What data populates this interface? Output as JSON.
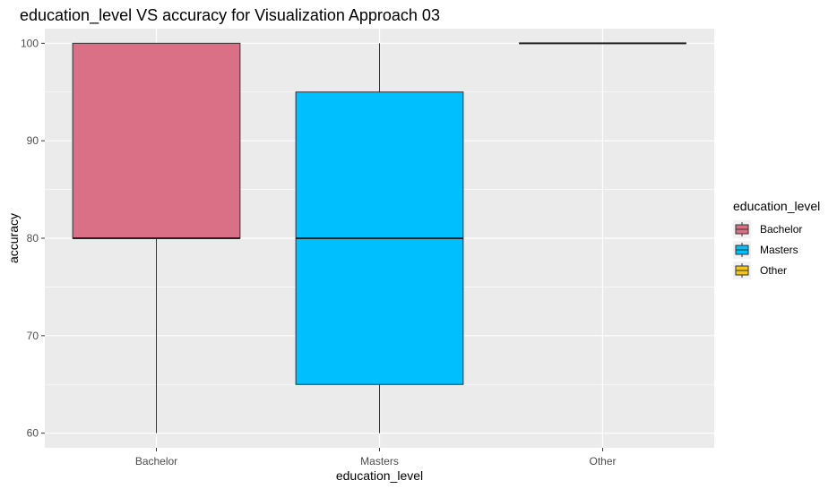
{
  "chart_data": {
    "type": "boxplot",
    "title": "education_level VS accuracy for Visualization Approach 03",
    "xlabel": "education_level",
    "ylabel": "accuracy",
    "ylim": [
      58.5,
      101.5
    ],
    "yticks": [
      60,
      70,
      80,
      90,
      100
    ],
    "grid": true,
    "categories": [
      "Bachelor",
      "Masters",
      "Other"
    ],
    "boxes": [
      {
        "category": "Bachelor",
        "min": 60,
        "q1": 80,
        "median": 80,
        "q3": 100,
        "max": 100,
        "color": "#d97085"
      },
      {
        "category": "Masters",
        "min": 60,
        "q1": 65,
        "median": 80,
        "q3": 95,
        "max": 100,
        "color": "#00bfff"
      },
      {
        "category": "Other",
        "min": 100,
        "q1": 100,
        "median": 100,
        "q3": 100,
        "max": 100,
        "color": "#f5c518"
      }
    ],
    "legend": {
      "title": "education_level",
      "position": "right",
      "entries": [
        {
          "label": "Bachelor",
          "color": "#d97085"
        },
        {
          "label": "Masters",
          "color": "#00bfff"
        },
        {
          "label": "Other",
          "color": "#f5c518"
        }
      ]
    },
    "panel_color": "#ebebeb",
    "grid_color": "#ffffff"
  }
}
